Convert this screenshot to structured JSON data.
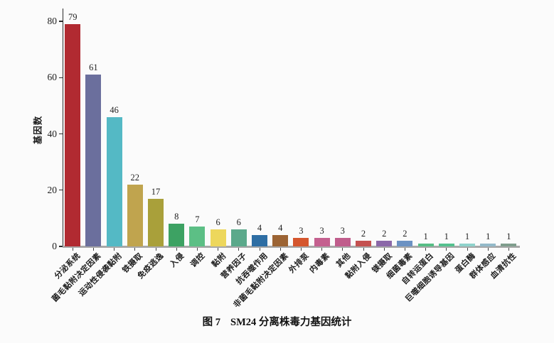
{
  "figure": {
    "caption_label": "图 7",
    "caption_title": "SM24 分离株毒力基因统计"
  },
  "chart_data": {
    "type": "bar",
    "title": "图 7 SM24 分离株毒力基因统计",
    "xlabel": "",
    "ylabel": "基因数",
    "ylim": [
      0,
      84
    ],
    "yticks": [
      0,
      20,
      40,
      60,
      80
    ],
    "grid": false,
    "legend_position": "none",
    "value_labels_shown": true,
    "categories": [
      "分泌系统",
      "菌毛黏附决定因素",
      "运动性侵袭黏附",
      "铁摄取",
      "免疫逃逸",
      "入侵",
      "调控",
      "黏附",
      "营养因子",
      "抗吞噬作用",
      "非菌毛黏附决定因素",
      "外排泵",
      "内毒素",
      "其他",
      "黏附入侵",
      "镁摄取",
      "细菌毒素",
      "自转运蛋白",
      "巨噬细胞诱导基因",
      "蛋白酶",
      "群体感应",
      "血清抗性"
    ],
    "values": [
      79,
      61,
      46,
      22,
      17,
      8,
      7,
      6,
      6,
      4,
      4,
      3,
      3,
      3,
      2,
      2,
      2,
      1,
      1,
      1,
      1,
      1
    ],
    "bar_colors": [
      "#b12a31",
      "#6b6f9d",
      "#54b9c5",
      "#c0a44e",
      "#a9a03a",
      "#3da263",
      "#5cbf85",
      "#edd75c",
      "#5ba98b",
      "#2e6ea4",
      "#9c6434",
      "#d5562e",
      "#c4608f",
      "#c05d8c",
      "#c45150",
      "#8b68a8",
      "#6c92c3",
      "#56bd85",
      "#55c18f",
      "#8fd2cb",
      "#93b9c9",
      "#7f9e8d"
    ]
  }
}
